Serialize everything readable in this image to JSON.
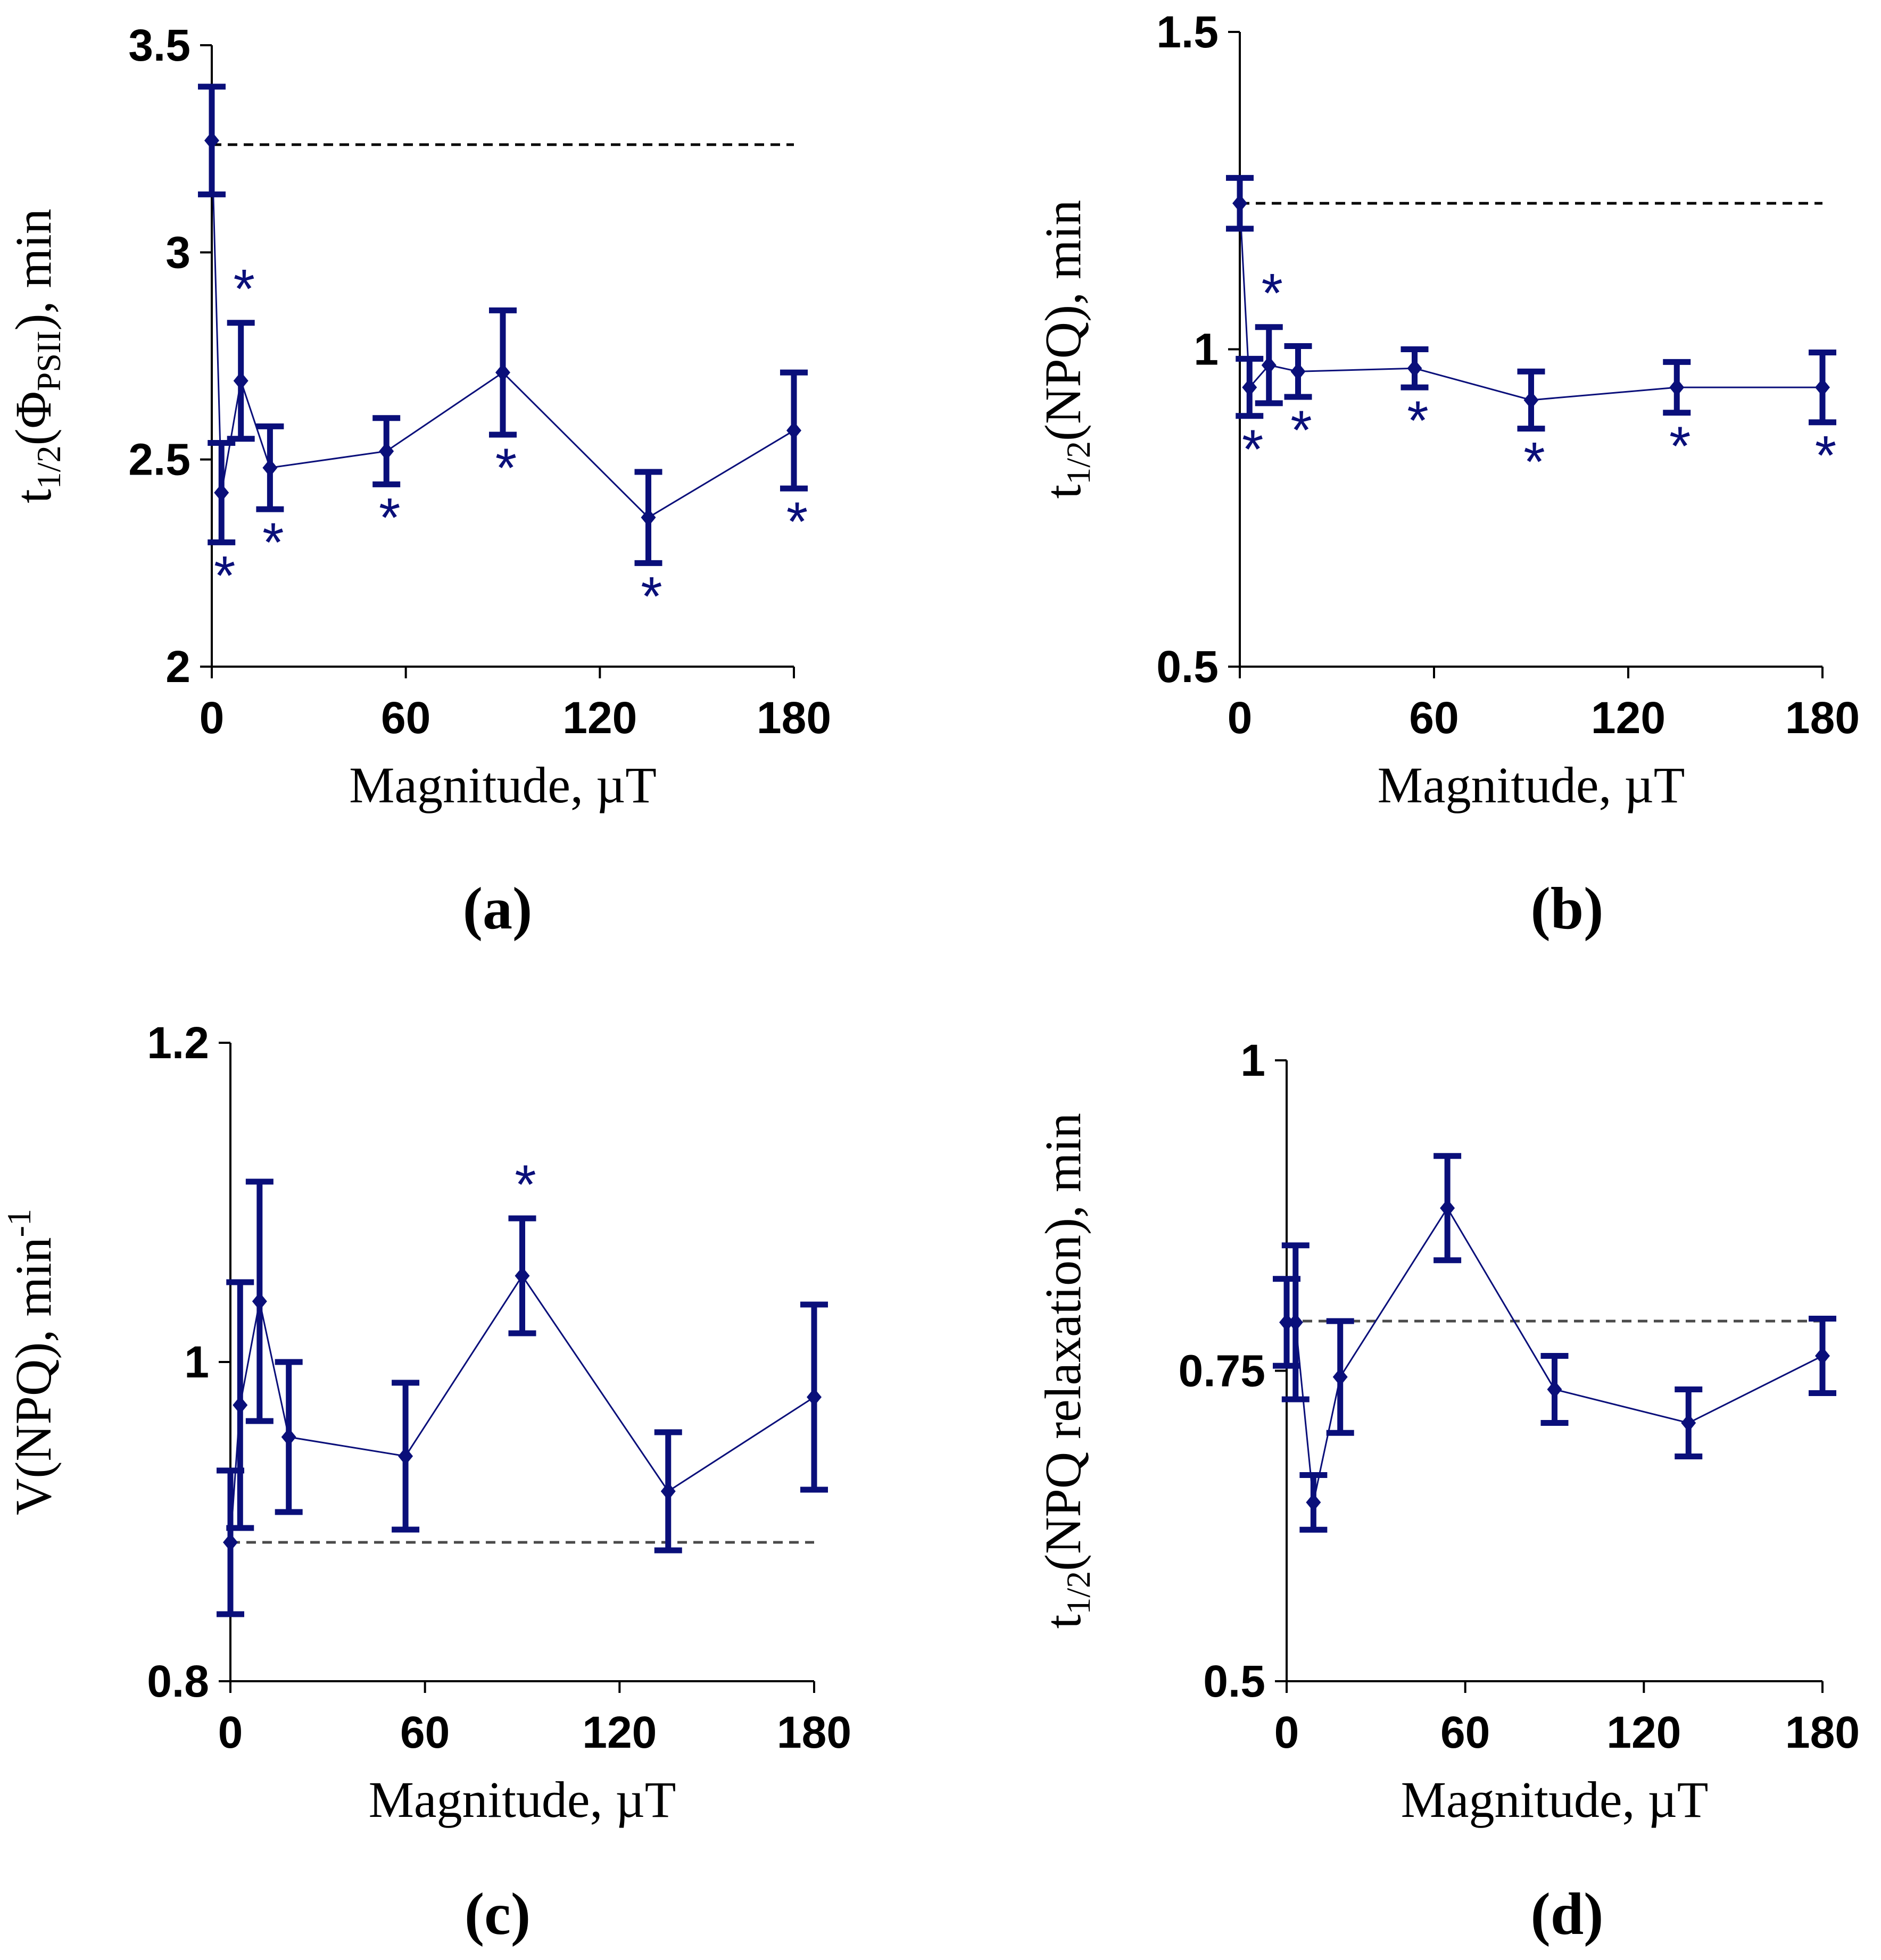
{
  "series_color": "#0a0f7a",
  "reference_color_ab": "#000000",
  "reference_color_cd": "#4a4a4a",
  "chart_data": [
    {
      "panel_label": "(a)",
      "type": "line",
      "xlabel": "Magnitude, µT",
      "ylabel_main": "t",
      "ylabel_sub": "1/2",
      "ylabel_rest": "(Φ",
      "ylabel_sub2": "PSII",
      "ylabel_end": "), min",
      "xlim": [
        0,
        180
      ],
      "ylim": [
        2,
        3.5
      ],
      "xticks": [
        0,
        60,
        120,
        180
      ],
      "xtick_labels": [
        "0",
        "60",
        "120",
        "180"
      ],
      "yticks": [
        2,
        2.5,
        3,
        3.5
      ],
      "ytick_labels": [
        "2",
        "2.5",
        "3",
        "3.5"
      ],
      "control_line": 3.26,
      "x": [
        0,
        3,
        9,
        18,
        54,
        90,
        135,
        180
      ],
      "y": [
        3.27,
        2.42,
        2.69,
        2.48,
        2.52,
        2.71,
        2.36,
        2.57
      ],
      "err": [
        0.13,
        0.12,
        0.14,
        0.1,
        0.08,
        0.15,
        0.11,
        0.14
      ],
      "stars": [
        "",
        "*",
        "*",
        "*",
        "*",
        "*",
        "*",
        "*"
      ],
      "star_pos": [
        "",
        "below",
        "above",
        "below",
        "below",
        "below",
        "below",
        "below"
      ]
    },
    {
      "panel_label": "(b)",
      "type": "line",
      "xlabel": "Magnitude, µT",
      "ylabel_main": "t",
      "ylabel_sub": "1/2",
      "ylabel_rest": "(NPQ), min",
      "xlim": [
        0,
        180
      ],
      "ylim": [
        0.5,
        1.5
      ],
      "xticks": [
        0,
        60,
        120,
        180
      ],
      "xtick_labels": [
        "0",
        "60",
        "120",
        "180"
      ],
      "yticks": [
        0.5,
        1,
        1.5
      ],
      "ytick_labels": [
        "0.5",
        "1",
        "1.5"
      ],
      "control_line": 1.23,
      "x": [
        0,
        3,
        9,
        18,
        54,
        90,
        135,
        180
      ],
      "y": [
        1.23,
        0.94,
        0.975,
        0.965,
        0.97,
        0.92,
        0.94,
        0.94
      ],
      "err": [
        0.04,
        0.045,
        0.06,
        0.04,
        0.03,
        0.045,
        0.04,
        0.055
      ],
      "stars": [
        "",
        "*",
        "*",
        "*",
        "*",
        "*",
        "*",
        "*"
      ],
      "star_pos": [
        "",
        "below",
        "above",
        "below",
        "below",
        "below",
        "below",
        "below"
      ]
    },
    {
      "panel_label": "(c)",
      "type": "line",
      "xlabel": "Magnitude, µT",
      "ylabel_main": "V(NPQ), min",
      "ylabel_sup": "-1",
      "xlim": [
        0,
        180
      ],
      "ylim": [
        0.8,
        1.2
      ],
      "xticks": [
        0,
        60,
        120,
        180
      ],
      "xtick_labels": [
        "0",
        "60",
        "120",
        "180"
      ],
      "yticks": [
        0.8,
        1,
        1.2
      ],
      "ytick_labels": [
        "0.8",
        "1",
        "1.2"
      ],
      "control_line": 0.887,
      "x": [
        0,
        3,
        9,
        18,
        54,
        90,
        135,
        180
      ],
      "y": [
        0.887,
        0.973,
        1.038,
        0.953,
        0.941,
        1.054,
        0.919,
        0.978
      ],
      "err": [
        0.045,
        0.077,
        0.075,
        0.047,
        0.046,
        0.036,
        0.037,
        0.058
      ],
      "stars": [
        "",
        "",
        "",
        "",
        "",
        "*",
        "",
        ""
      ],
      "star_pos": [
        "",
        "",
        "",
        "",
        "",
        "above",
        "",
        ""
      ]
    },
    {
      "panel_label": "(d)",
      "type": "line",
      "xlabel": "Magnitude, µT",
      "ylabel_main": "t",
      "ylabel_sub": "1/2",
      "ylabel_rest": "(NPQ relaxation), min",
      "xlim": [
        0,
        180
      ],
      "ylim": [
        0.5,
        1
      ],
      "xticks": [
        0,
        60,
        120,
        180
      ],
      "xtick_labels": [
        "0",
        "60",
        "120",
        "180"
      ],
      "yticks": [
        0.5,
        0.75,
        1
      ],
      "ytick_labels": [
        "0.5",
        "0.75",
        "1"
      ],
      "control_line": 0.79,
      "x": [
        0,
        3,
        9,
        18,
        54,
        90,
        135,
        180
      ],
      "y": [
        0.789,
        0.789,
        0.644,
        0.745,
        0.881,
        0.735,
        0.708,
        0.762
      ],
      "err": [
        0.035,
        0.062,
        0.022,
        0.045,
        0.042,
        0.027,
        0.027,
        0.03
      ],
      "stars": [
        "",
        "",
        "",
        "",
        "",
        "",
        "",
        ""
      ],
      "star_pos": [
        "",
        "",
        "",
        "",
        "",
        "",
        "",
        ""
      ]
    }
  ]
}
